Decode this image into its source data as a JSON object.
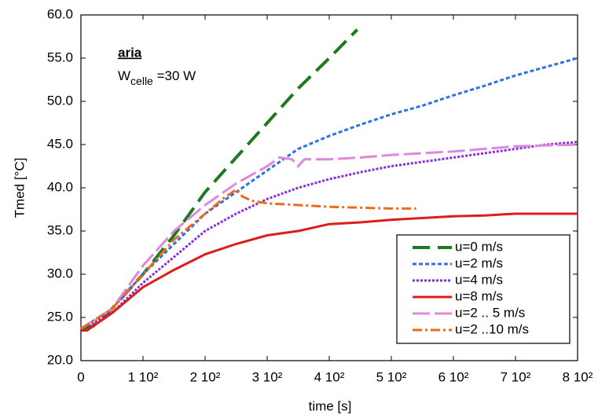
{
  "chart_data": {
    "type": "line",
    "x_label": "time [s]",
    "y_label": "Tmed [°C]",
    "annotation_1": "aria",
    "annotation_2": {
      "main": "W",
      "sub": "celle",
      "rest": " =30 W"
    },
    "xlim": [
      0,
      800
    ],
    "ylim": [
      20,
      60
    ],
    "xticks": [
      0,
      {
        "value": 100,
        "label": "1 10²"
      },
      {
        "value": 200,
        "label": "2 10²"
      },
      {
        "value": 300,
        "label": "3 10²"
      },
      {
        "value": 400,
        "label": "4 10²"
      },
      {
        "value": 500,
        "label": "5 10²"
      },
      {
        "value": 600,
        "label": "6 10²"
      },
      {
        "value": 700,
        "label": "7 10²"
      },
      {
        "value": 800,
        "label": "8 10²"
      }
    ],
    "yticks": [
      {
        "value": 20,
        "label": "20.0"
      },
      {
        "value": 25,
        "label": "25.0"
      },
      {
        "value": 30,
        "label": "30.0"
      },
      {
        "value": 35,
        "label": "35.0"
      },
      {
        "value": 40,
        "label": "40.0"
      },
      {
        "value": 45,
        "label": "45.0"
      },
      {
        "value": 50,
        "label": "50.0"
      },
      {
        "value": 55,
        "label": "55.0"
      },
      {
        "value": 60,
        "label": "60.0"
      }
    ],
    "legend": "lower right",
    "series": [
      {
        "name": "u=0 m/s",
        "color": "#1e7a1e",
        "dash": "22,10",
        "width": 4,
        "x": [
          0,
          20,
          50,
          100,
          150,
          200,
          250,
          300,
          350,
          400,
          445
        ],
        "values": [
          23.7,
          24,
          26,
          30,
          34.5,
          39.5,
          43.5,
          47.5,
          51.5,
          55,
          58.3
        ]
      },
      {
        "name": "u=2 m/s",
        "color": "#2f6fe8",
        "dash": "5,3",
        "width": 3,
        "x": [
          0,
          50,
          100,
          150,
          200,
          250,
          300,
          350,
          400,
          450,
          500,
          550,
          600,
          650,
          700,
          750,
          800
        ],
        "values": [
          23.7,
          26,
          30,
          33.5,
          37,
          39.5,
          42,
          44.5,
          46,
          47.3,
          48.5,
          49.5,
          50.7,
          51.8,
          53,
          54,
          55
        ]
      },
      {
        "name": "u=4 m/s",
        "color": "#8a2be2",
        "dash": "3,2",
        "width": 3,
        "x": [
          0,
          50,
          100,
          150,
          200,
          250,
          300,
          350,
          400,
          450,
          500,
          550,
          600,
          650,
          700,
          750,
          800
        ],
        "values": [
          23.7,
          25.5,
          29,
          32,
          35,
          37,
          38.7,
          40,
          41,
          41.8,
          42.5,
          43,
          43.5,
          44,
          44.5,
          45,
          45.3
        ]
      },
      {
        "name": "u=8 m/s",
        "color": "#dd1c1c",
        "dash": "",
        "width": 3,
        "x": [
          0,
          10,
          50,
          100,
          150,
          200,
          250,
          300,
          350,
          400,
          450,
          500,
          550,
          600,
          650,
          700,
          800
        ],
        "values": [
          23.5,
          23.5,
          25.5,
          28.5,
          30.5,
          32.3,
          33.5,
          34.5,
          35,
          35.8,
          36,
          36.3,
          36.5,
          36.7,
          36.8,
          37,
          37
        ]
      },
      {
        "name": "u=2 .. 5 m/s",
        "color": "#dd88dd",
        "dash": "22,6",
        "width": 3,
        "x": [
          0,
          50,
          100,
          150,
          200,
          250,
          300,
          320,
          340,
          350,
          360,
          400,
          450,
          500,
          550,
          600,
          650,
          700,
          800
        ],
        "values": [
          23.7,
          26,
          31,
          35,
          38,
          40.5,
          42.5,
          43.5,
          43.3,
          42.5,
          43.3,
          43.3,
          43.5,
          43.8,
          44,
          44.2,
          44.5,
          44.8,
          45
        ]
      },
      {
        "name": "u=2 ..10 m/s",
        "color": "#ee6a1a",
        "dash": "12,4,3,4",
        "width": 3,
        "x": [
          0,
          50,
          100,
          150,
          200,
          230,
          250,
          260,
          275,
          300,
          350,
          400,
          450,
          500,
          540
        ],
        "values": [
          23.7,
          26,
          30,
          34,
          37,
          38.8,
          39.8,
          39,
          38.5,
          38.2,
          38,
          37.8,
          37.7,
          37.6,
          37.6
        ]
      }
    ]
  }
}
